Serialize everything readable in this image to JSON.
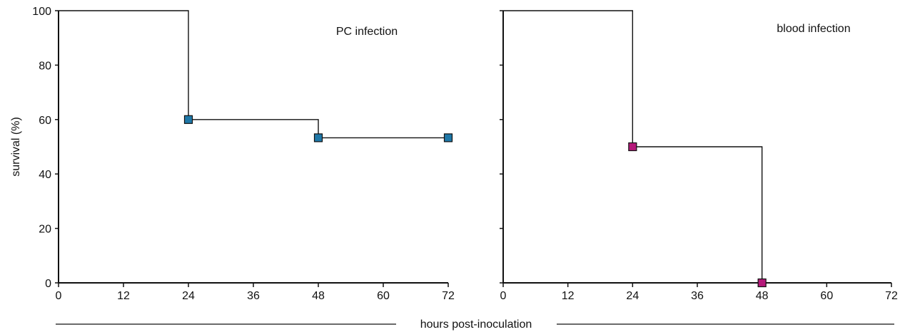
{
  "figure": {
    "shared_xlabel": "hours post-inoculation"
  },
  "chart_data": [
    {
      "type": "line",
      "subtype": "survival-step",
      "title": "PC infection",
      "xlabel": "",
      "ylabel": "survival (%)",
      "xlim": [
        0,
        72
      ],
      "ylim": [
        0,
        100
      ],
      "x_ticks": [
        0,
        12,
        24,
        36,
        48,
        60,
        72
      ],
      "y_ticks": [
        0,
        20,
        40,
        60,
        80,
        100
      ],
      "y_tick_labels_visible": true,
      "grid": false,
      "series": [
        {
          "step_points": [
            [
              0,
              100
            ],
            [
              24,
              100
            ],
            [
              24,
              60
            ],
            [
              48,
              60
            ],
            [
              48,
              53.3
            ],
            [
              72,
              53.3
            ]
          ],
          "markers": [
            [
              24,
              60
            ],
            [
              48,
              53.3
            ],
            [
              72,
              53.3
            ]
          ],
          "color": "#1f78a8"
        }
      ]
    },
    {
      "type": "line",
      "subtype": "survival-step",
      "title": "blood infection",
      "xlabel": "",
      "ylabel": "",
      "xlim": [
        0,
        72
      ],
      "ylim": [
        0,
        100
      ],
      "x_ticks": [
        0,
        12,
        24,
        36,
        48,
        60,
        72
      ],
      "y_ticks": [
        0,
        20,
        40,
        60,
        80,
        100
      ],
      "y_tick_labels_visible": false,
      "grid": false,
      "series": [
        {
          "step_points": [
            [
              0,
              100
            ],
            [
              24,
              100
            ],
            [
              24,
              50
            ],
            [
              48,
              50
            ],
            [
              48,
              0
            ]
          ],
          "markers": [
            [
              24,
              50
            ],
            [
              48,
              0
            ]
          ],
          "color": "#b5197a"
        }
      ]
    }
  ]
}
